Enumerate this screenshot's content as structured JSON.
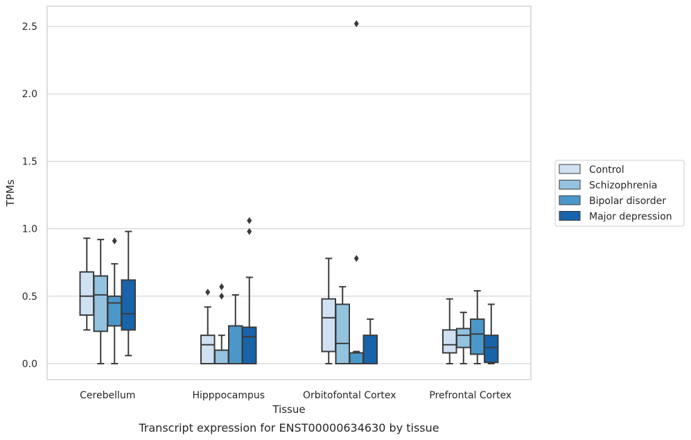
{
  "caption": "Transcript expression for ENST00000634630 by tissue",
  "colors": {
    "Control": "#cfe1f2",
    "Schizophrenia": "#93c3df",
    "Bipolar disorder": "#4b97c9",
    "Major depression": "#1764ab",
    "line": "#3b3b3b",
    "grid": "#cccccc",
    "spine": "#cccccc"
  },
  "chart_data": {
    "type": "box",
    "xlabel": "Tissue",
    "ylabel": "TPMs",
    "ylim": [
      -0.12,
      2.65
    ],
    "yticks": [
      "0.0",
      "0.5",
      "1.0",
      "1.5",
      "2.0",
      "2.5"
    ],
    "grid": "horizontal",
    "legend_position": "right",
    "categories": [
      "Cerebellum",
      "Hipppocampus",
      "Orbitofontal Cortex",
      "Prefrontal Cortex"
    ],
    "series": [
      {
        "name": "Control",
        "boxes": [
          {
            "whislo": 0.25,
            "q1": 0.36,
            "med": 0.5,
            "q3": 0.68,
            "whishi": 0.93,
            "fliers": []
          },
          {
            "whislo": 0.0,
            "q1": 0.0,
            "med": 0.14,
            "q3": 0.21,
            "whishi": 0.42,
            "fliers": [
              0.53
            ]
          },
          {
            "whislo": 0.0,
            "q1": 0.09,
            "med": 0.34,
            "q3": 0.48,
            "whishi": 0.78,
            "fliers": []
          },
          {
            "whislo": 0.0,
            "q1": 0.08,
            "med": 0.14,
            "q3": 0.25,
            "whishi": 0.48,
            "fliers": []
          }
        ]
      },
      {
        "name": "Schizophrenia",
        "boxes": [
          {
            "whislo": 0.0,
            "q1": 0.24,
            "med": 0.51,
            "q3": 0.65,
            "whishi": 0.92,
            "fliers": []
          },
          {
            "whislo": 0.0,
            "q1": 0.0,
            "med": 0.0,
            "q3": 0.1,
            "whishi": 0.21,
            "fliers": [
              0.5,
              0.57
            ]
          },
          {
            "whislo": 0.0,
            "q1": 0.0,
            "med": 0.15,
            "q3": 0.44,
            "whishi": 0.57,
            "fliers": []
          },
          {
            "whislo": 0.0,
            "q1": 0.12,
            "med": 0.21,
            "q3": 0.26,
            "whishi": 0.38,
            "fliers": []
          }
        ]
      },
      {
        "name": "Bipolar disorder",
        "boxes": [
          {
            "whislo": 0.0,
            "q1": 0.28,
            "med": 0.45,
            "q3": 0.5,
            "whishi": 0.74,
            "fliers": [
              0.91
            ]
          },
          {
            "whislo": 0.0,
            "q1": 0.0,
            "med": 0.0,
            "q3": 0.28,
            "whishi": 0.51,
            "fliers": []
          },
          {
            "whislo": 0.0,
            "q1": 0.0,
            "med": 0.0,
            "q3": 0.08,
            "whishi": 0.09,
            "fliers": [
              0.78,
              2.52
            ]
          },
          {
            "whislo": 0.0,
            "q1": 0.07,
            "med": 0.22,
            "q3": 0.33,
            "whishi": 0.54,
            "fliers": []
          }
        ]
      },
      {
        "name": "Major depression",
        "boxes": [
          {
            "whislo": 0.06,
            "q1": 0.25,
            "med": 0.37,
            "q3": 0.62,
            "whishi": 0.98,
            "fliers": []
          },
          {
            "whislo": 0.0,
            "q1": 0.0,
            "med": 0.2,
            "q3": 0.27,
            "whishi": 0.64,
            "fliers": [
              0.98,
              1.06
            ]
          },
          {
            "whislo": 0.0,
            "q1": 0.0,
            "med": 0.0,
            "q3": 0.21,
            "whishi": 0.33,
            "fliers": []
          },
          {
            "whislo": 0.0,
            "q1": 0.01,
            "med": 0.12,
            "q3": 0.21,
            "whishi": 0.44,
            "fliers": []
          }
        ]
      }
    ]
  }
}
